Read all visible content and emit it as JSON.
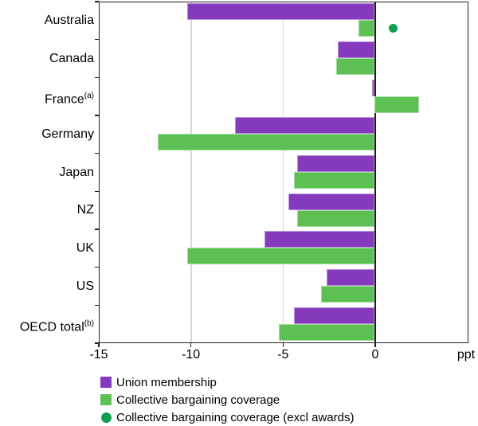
{
  "chart_data": {
    "type": "bar",
    "orientation": "horizontal",
    "title": "",
    "unit_label": "ppt",
    "categories": [
      "Australia",
      "Canada",
      "France",
      "Germany",
      "Japan",
      "NZ",
      "UK",
      "US",
      "OECD total"
    ],
    "category_superscripts": [
      "",
      "",
      "(a)",
      "",
      "",
      "",
      "",
      "",
      "(b)"
    ],
    "series": [
      {
        "name": "Union membership",
        "render": "bar",
        "color": "#8539BD",
        "values": [
          -10.2,
          -2.0,
          -0.15,
          -7.6,
          -4.2,
          -4.7,
          -6.0,
          -2.6,
          -4.4
        ]
      },
      {
        "name": "Collective bargaining coverage",
        "render": "bar",
        "color": "#5CC152",
        "values": [
          -0.9,
          -2.1,
          2.4,
          -11.8,
          -4.4,
          -4.2,
          -10.2,
          -2.9,
          -5.2
        ]
      },
      {
        "name": "Collective bargaining coverage (excl awards)",
        "render": "dot",
        "color": "#0DA14F",
        "values": [
          1.0,
          null,
          null,
          null,
          null,
          null,
          null,
          null,
          null
        ]
      }
    ],
    "xlabel": "ppt",
    "xlim": [
      -15,
      5.06
    ],
    "xticks": [
      -15,
      -10,
      -5,
      0
    ],
    "grid": "vertical-light-gray",
    "zero_line": true,
    "legend_position": "bottom-left",
    "colors": {
      "frame": "#1f1f1f",
      "gridline": "#d8d8d8",
      "background": "#ffffff"
    }
  }
}
